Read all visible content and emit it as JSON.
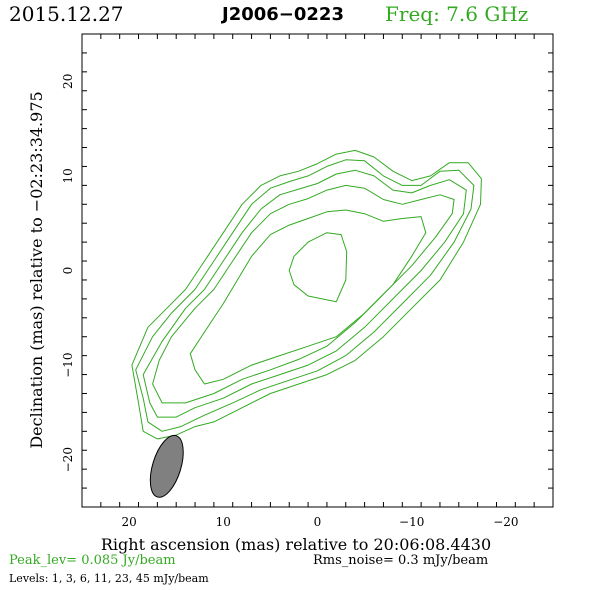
{
  "header": {
    "date": "2015.12.27",
    "source": "J2006−0223",
    "freq": "Freq: 7.6 GHz"
  },
  "footer": {
    "peak": "Peak_lev=  0.085 Jy/beam",
    "rms": "Rms_noise=   0.3 mJy/beam",
    "levels": "Levels:   1,   3,   6,  11,  23,  45 mJy/beam"
  },
  "colors": {
    "contour": "#33aa22",
    "beam_fill": "#808080",
    "accent_text": "#33aa22"
  },
  "chart_data": {
    "type": "contour",
    "xlabel": "Right ascension (mas) relative to 20:06:08.4430",
    "ylabel": "Declination (mas) relative to −02:23:34.975",
    "xlim": [
      25,
      -25
    ],
    "ylim": [
      -25,
      25
    ],
    "x_ticks": [
      20,
      10,
      0,
      -10,
      -20
    ],
    "y_ticks": [
      20,
      10,
      0,
      -10,
      -20
    ],
    "x_tick_labels": [
      "20",
      "10",
      "0",
      "−10",
      "−20"
    ],
    "y_tick_labels": [
      "20",
      "10",
      "0",
      "−10",
      "−20"
    ],
    "levels_mJy": [
      1,
      3,
      6,
      11,
      23,
      45
    ],
    "beam": {
      "x": 16,
      "y": -20.7,
      "major": 6.8,
      "minor": 3.0,
      "pa_deg": 17
    },
    "contours": [
      [
        [
          19.7,
          -10
        ],
        [
          19,
          -14
        ],
        [
          18.5,
          -17
        ],
        [
          17,
          -17.8
        ],
        [
          15,
          -17.4
        ],
        [
          13,
          -16.5
        ],
        [
          11,
          -16
        ],
        [
          8,
          -14.5
        ],
        [
          5,
          -13
        ],
        [
          2,
          -12
        ],
        [
          -1,
          -11
        ],
        [
          -4,
          -9.5
        ],
        [
          -7,
          -7
        ],
        [
          -10,
          -4
        ],
        [
          -13,
          -1
        ],
        [
          -15.5,
          3
        ],
        [
          -17.3,
          7
        ],
        [
          -17.4,
          9.7
        ],
        [
          -16,
          11.4
        ],
        [
          -14,
          11.4
        ],
        [
          -12,
          10
        ],
        [
          -10,
          9.5
        ],
        [
          -8,
          10.5
        ],
        [
          -6,
          12
        ],
        [
          -4,
          12.7
        ],
        [
          -2,
          12.3
        ],
        [
          0,
          11.3
        ],
        [
          2,
          10.5
        ],
        [
          4,
          10
        ],
        [
          6,
          9
        ],
        [
          8,
          7
        ],
        [
          10,
          4
        ],
        [
          12,
          1
        ],
        [
          14,
          -2
        ],
        [
          16,
          -4
        ],
        [
          18,
          -6
        ]
      ],
      [
        [
          19.3,
          -10.5
        ],
        [
          18.5,
          -13.5
        ],
        [
          18,
          -16
        ],
        [
          16.5,
          -17
        ],
        [
          14.5,
          -16.5
        ],
        [
          12,
          -15.3
        ],
        [
          9,
          -14
        ],
        [
          6,
          -12.6
        ],
        [
          3,
          -11.6
        ],
        [
          0,
          -10.6
        ],
        [
          -3,
          -9
        ],
        [
          -6,
          -6.5
        ],
        [
          -9,
          -3.5
        ],
        [
          -12,
          -0.5
        ],
        [
          -14.5,
          3
        ],
        [
          -16.3,
          6.5
        ],
        [
          -16.6,
          9
        ],
        [
          -15,
          10.6
        ],
        [
          -13,
          10.5
        ],
        [
          -11,
          9
        ],
        [
          -9,
          9
        ],
        [
          -7,
          10
        ],
        [
          -5,
          11.6
        ],
        [
          -3,
          11.7
        ],
        [
          -1,
          11
        ],
        [
          1,
          10
        ],
        [
          3,
          9.4
        ],
        [
          5,
          8.7
        ],
        [
          7,
          7
        ],
        [
          9,
          4
        ],
        [
          11,
          1
        ],
        [
          13,
          -2
        ],
        [
          15.5,
          -4.5
        ],
        [
          17.5,
          -7
        ]
      ],
      [
        [
          18.5,
          -11
        ],
        [
          17.8,
          -14
        ],
        [
          17,
          -15.5
        ],
        [
          15,
          -15.5
        ],
        [
          13,
          -14.5
        ],
        [
          10,
          -13.5
        ],
        [
          7,
          -12
        ],
        [
          4,
          -11
        ],
        [
          1,
          -10
        ],
        [
          -2,
          -8.5
        ],
        [
          -5,
          -6
        ],
        [
          -8,
          -3
        ],
        [
          -11,
          0
        ],
        [
          -13.5,
          3
        ],
        [
          -15.5,
          6
        ],
        [
          -15.8,
          8.5
        ],
        [
          -14,
          9.6
        ],
        [
          -12,
          9
        ],
        [
          -10,
          8.2
        ],
        [
          -8,
          8.5
        ],
        [
          -6,
          10
        ],
        [
          -4,
          10.6
        ],
        [
          -2,
          10.2
        ],
        [
          0,
          9.2
        ],
        [
          2,
          8.6
        ],
        [
          4,
          8
        ],
        [
          6,
          6.5
        ],
        [
          8,
          4
        ],
        [
          10,
          1
        ],
        [
          12,
          -2
        ],
        [
          14,
          -4
        ],
        [
          16.5,
          -7.5
        ]
      ],
      [
        [
          17.5,
          -12
        ],
        [
          16.5,
          -14
        ],
        [
          14,
          -14
        ],
        [
          11,
          -13
        ],
        [
          8,
          -11.5
        ],
        [
          5,
          -10.5
        ],
        [
          2,
          -9.4
        ],
        [
          -1,
          -8
        ],
        [
          -4,
          -5.5
        ],
        [
          -7,
          -2.5
        ],
        [
          -10,
          0.5
        ],
        [
          -12.5,
          3.5
        ],
        [
          -14.3,
          6
        ],
        [
          -14.5,
          7.5
        ],
        [
          -13,
          8
        ],
        [
          -11,
          7.5
        ],
        [
          -9,
          7
        ],
        [
          -7,
          7.5
        ],
        [
          -5,
          8.7
        ],
        [
          -3,
          9
        ],
        [
          -1,
          8.5
        ],
        [
          1,
          7.6
        ],
        [
          3,
          7
        ],
        [
          5,
          6
        ],
        [
          7,
          4
        ],
        [
          9,
          1
        ],
        [
          11,
          -2
        ],
        [
          13,
          -4
        ],
        [
          15.5,
          -7
        ],
        [
          16.8,
          -9.5
        ]
      ],
      [
        [
          13,
          -10.5
        ],
        [
          12,
          -12
        ],
        [
          10,
          -11.5
        ],
        [
          7,
          -10
        ],
        [
          4,
          -9
        ],
        [
          1,
          -8
        ],
        [
          -2,
          -7
        ],
        [
          -5,
          -4.5
        ],
        [
          -8,
          -1.5
        ],
        [
          -10,
          1.5
        ],
        [
          -11.5,
          4
        ],
        [
          -11,
          5.7
        ],
        [
          -9,
          5.5
        ],
        [
          -7,
          5.2
        ],
        [
          -5,
          6
        ],
        [
          -3,
          6.4
        ],
        [
          -1,
          6.2
        ],
        [
          1,
          5.5
        ],
        [
          3,
          4.8
        ],
        [
          5,
          3.8
        ],
        [
          7,
          1.5
        ],
        [
          8.5,
          -1
        ],
        [
          10,
          -3.5
        ],
        [
          12,
          -6.5
        ],
        [
          13.5,
          -8.8
        ]
      ],
      [
        [
          1,
          -2.7
        ],
        [
          -2,
          -3.3
        ],
        [
          -3,
          -1
        ],
        [
          -3.1,
          2
        ],
        [
          -2.5,
          3.8
        ],
        [
          -1,
          4
        ],
        [
          1,
          3
        ],
        [
          2.5,
          1.5
        ],
        [
          3,
          0
        ],
        [
          2.5,
          -1.5
        ]
      ]
    ]
  }
}
